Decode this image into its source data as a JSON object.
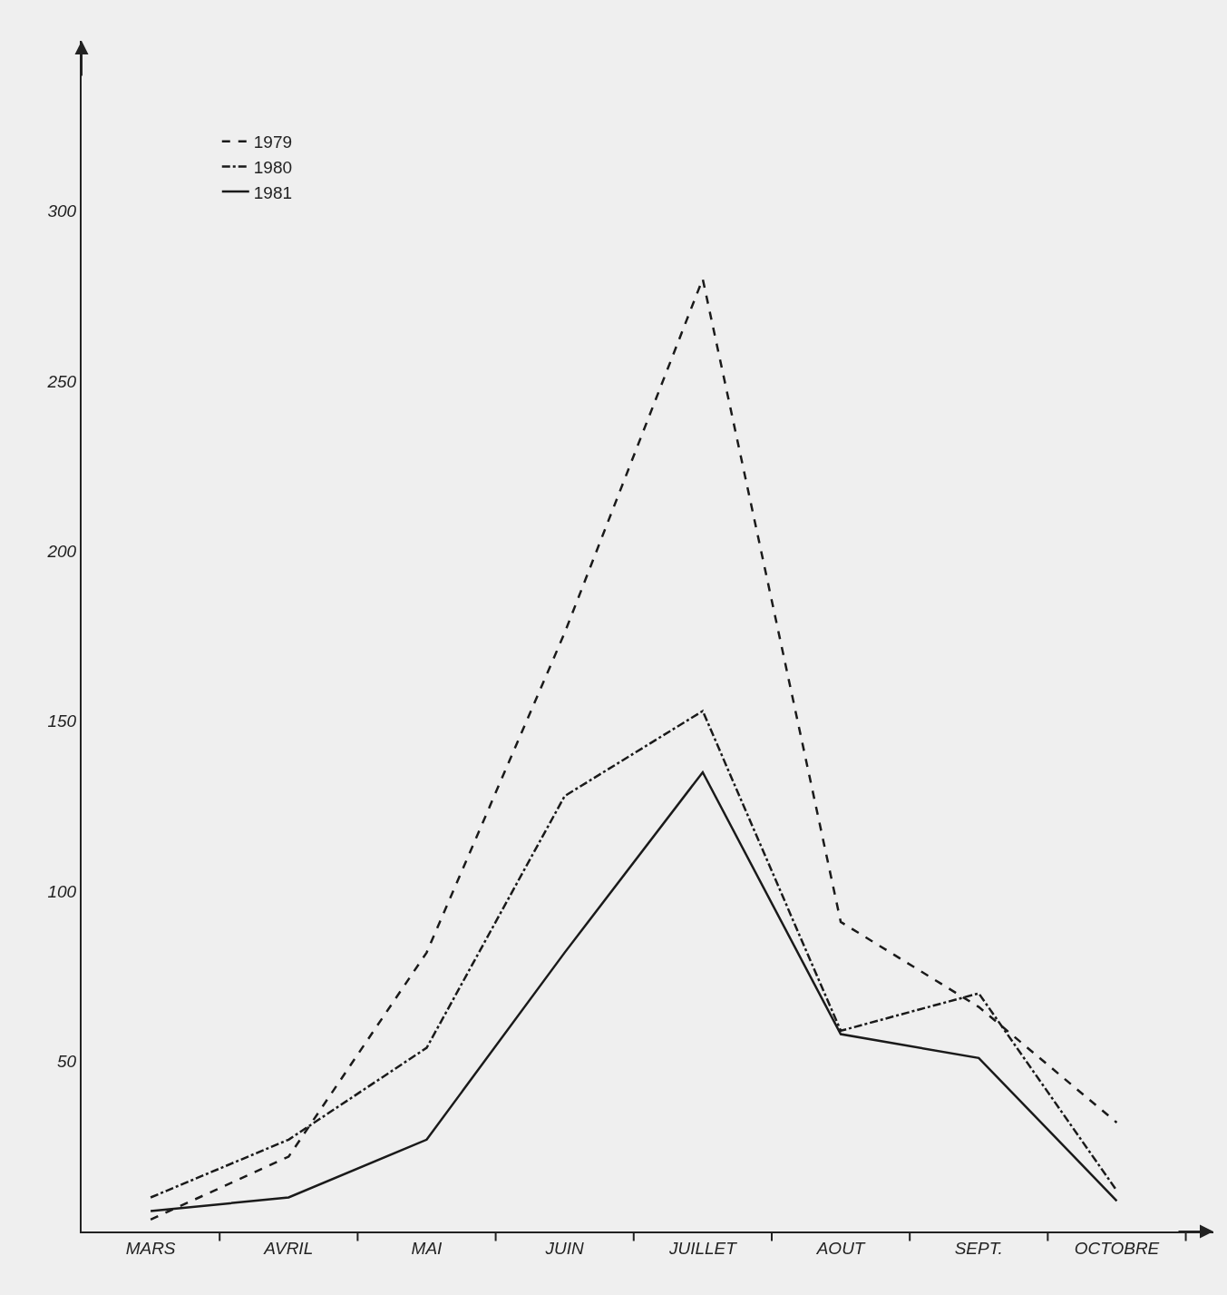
{
  "chart_data": {
    "type": "line",
    "categories": [
      "MARS",
      "AVRIL",
      "MAI",
      "JUIN",
      "JUILLET",
      "AOUT",
      "SEPT.",
      "OCTOBRE"
    ],
    "series": [
      {
        "name": "1979",
        "color": "#1a1a1a",
        "line_style": "dashed",
        "values": [
          3.5,
          22,
          82,
          176,
          280,
          91,
          66,
          32
        ]
      },
      {
        "name": "1980",
        "color": "#1a1a1a",
        "line_style": "dashdot",
        "values": [
          10,
          27,
          54,
          128,
          153,
          59,
          70,
          12
        ]
      },
      {
        "name": "1981",
        "color": "#1a1a1a",
        "line_style": "solid",
        "values": [
          6,
          10,
          27,
          82,
          135,
          58,
          51,
          9
        ]
      }
    ],
    "ylim": [
      0,
      350
    ],
    "yticks": [
      50,
      100,
      150,
      200,
      250,
      300
    ],
    "grid": false,
    "legend": "top left",
    "marker": "none"
  }
}
